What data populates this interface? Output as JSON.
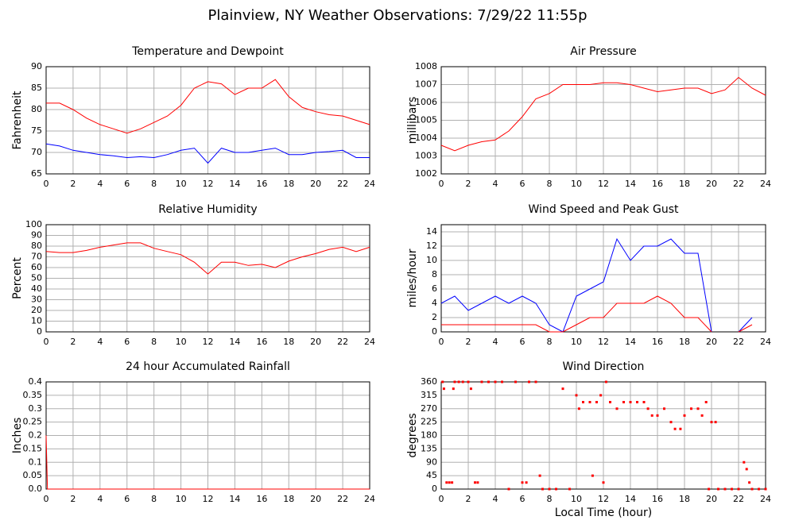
{
  "title": "Plainview, NY Weather Observations: 7/29/22 11:55p",
  "chart_data": [
    {
      "type": "line",
      "title": "Temperature and Dewpoint",
      "y_label": "Fahrenheit",
      "x": [
        0,
        1,
        2,
        3,
        4,
        5,
        6,
        7,
        8,
        9,
        10,
        11,
        12,
        13,
        14,
        15,
        16,
        17,
        18,
        19,
        20,
        21,
        22,
        23,
        24
      ],
      "xlim": [
        0,
        24
      ],
      "xticks": [
        0,
        2,
        4,
        6,
        8,
        10,
        12,
        14,
        16,
        18,
        20,
        22,
        24
      ],
      "ylim": [
        65,
        90
      ],
      "yticks": [
        65,
        70,
        75,
        80,
        85,
        90
      ],
      "grid": true,
      "series": [
        {
          "color": "#ff0000",
          "values": [
            81.5,
            81.5,
            80,
            78,
            76.5,
            75.5,
            74.5,
            75.5,
            77,
            78.5,
            81,
            85,
            86.5,
            86,
            83.5,
            85,
            85,
            87,
            83,
            80.5,
            79.5,
            78.8,
            78.5,
            77.5,
            76.5
          ]
        },
        {
          "color": "#0000ff",
          "values": [
            72,
            71.5,
            70.5,
            70,
            69.5,
            69.2,
            68.8,
            69,
            68.8,
            69.5,
            70.5,
            71,
            67.5,
            71,
            70,
            70,
            70.5,
            71,
            69.5,
            69.5,
            70,
            70.2,
            70.5,
            68.8,
            68.8
          ]
        }
      ]
    },
    {
      "type": "line",
      "title": "Air Pressure",
      "y_label": "millibars",
      "x": [
        0,
        1,
        2,
        3,
        4,
        5,
        6,
        7,
        8,
        9,
        10,
        11,
        12,
        13,
        14,
        15,
        16,
        17,
        18,
        19,
        20,
        21,
        22,
        23,
        24
      ],
      "xlim": [
        0,
        24
      ],
      "xticks": [
        0,
        2,
        4,
        6,
        8,
        10,
        12,
        14,
        16,
        18,
        20,
        22,
        24
      ],
      "ylim": [
        1002,
        1008
      ],
      "yticks": [
        1002,
        1003,
        1004,
        1005,
        1006,
        1007,
        1008
      ],
      "grid": true,
      "series": [
        {
          "color": "#ff0000",
          "values": [
            1003.6,
            1003.3,
            1003.6,
            1003.8,
            1003.9,
            1004.4,
            1005.2,
            1006.2,
            1006.5,
            1007,
            1007,
            1007,
            1007.1,
            1007.1,
            1007,
            1006.8,
            1006.6,
            1006.7,
            1006.8,
            1006.8,
            1006.5,
            1006.7,
            1007.4,
            1006.8,
            1006.4
          ]
        }
      ]
    },
    {
      "type": "line",
      "title": "Relative Humidity",
      "y_label": "Percent",
      "x": [
        0,
        1,
        2,
        3,
        4,
        5,
        6,
        7,
        8,
        9,
        10,
        11,
        12,
        13,
        14,
        15,
        16,
        17,
        18,
        19,
        20,
        21,
        22,
        23,
        24
      ],
      "xlim": [
        0,
        24
      ],
      "xticks": [
        0,
        2,
        4,
        6,
        8,
        10,
        12,
        14,
        16,
        18,
        20,
        22,
        24
      ],
      "ylim": [
        0,
        100
      ],
      "yticks": [
        0,
        10,
        20,
        30,
        40,
        50,
        60,
        70,
        80,
        90,
        100
      ],
      "grid": true,
      "series": [
        {
          "color": "#ff0000",
          "values": [
            75,
            74,
            74,
            76,
            79,
            81,
            83,
            83,
            78,
            75,
            72,
            65,
            54,
            65,
            65,
            62,
            63,
            60,
            66,
            70,
            73,
            77,
            79,
            75,
            79
          ]
        }
      ]
    },
    {
      "type": "line",
      "title": "Wind Speed and Peak Gust",
      "y_label": "miles/hour",
      "x": [
        0,
        1,
        2,
        3,
        4,
        5,
        6,
        7,
        8,
        9,
        10,
        11,
        12,
        13,
        14,
        15,
        16,
        17,
        18,
        19,
        20,
        21,
        22,
        23,
        24
      ],
      "xlim": [
        0,
        24
      ],
      "xticks": [
        0,
        2,
        4,
        6,
        8,
        10,
        12,
        14,
        16,
        18,
        20,
        22,
        24
      ],
      "ylim": [
        0,
        15
      ],
      "yticks": [
        0,
        2,
        4,
        6,
        8,
        10,
        12,
        14
      ],
      "grid": true,
      "series": [
        {
          "color": "#0000ff",
          "values": [
            4,
            5,
            3,
            4,
            5,
            4,
            5,
            4,
            1,
            0,
            5,
            6,
            7,
            13,
            10,
            12,
            12,
            13,
            11,
            11,
            0,
            null,
            0,
            2,
            null
          ]
        },
        {
          "color": "#ff0000",
          "values": [
            1,
            1,
            1,
            1,
            1,
            1,
            1,
            1,
            0,
            0,
            1,
            2,
            2,
            4,
            4,
            4,
            5,
            4,
            2,
            2,
            0,
            null,
            0,
            1,
            null
          ]
        }
      ]
    },
    {
      "type": "line",
      "title": "24 hour Accumulated Rainfall",
      "y_label": "Inches",
      "x": [
        0,
        0.1,
        24
      ],
      "xlim": [
        0,
        24
      ],
      "xticks": [
        0,
        2,
        4,
        6,
        8,
        10,
        12,
        14,
        16,
        18,
        20,
        22,
        24
      ],
      "ylim": [
        0,
        0.4
      ],
      "yticks": [
        {
          "value": 0,
          "label": "0.0"
        },
        0.05,
        0.1,
        0.15,
        0.2,
        0.25,
        0.3,
        0.35,
        0.4
      ],
      "grid": true,
      "series": [
        {
          "color": "#ff0000",
          "values": [
            0.2,
            0,
            0
          ]
        }
      ]
    },
    {
      "type": "scatter",
      "title": "Wind Direction",
      "y_label": "degrees",
      "x_label": "Local Time (hour)",
      "x": [
        0.1,
        0.2,
        0.4,
        0.6,
        0.8,
        0.9,
        1,
        1.3,
        1.6,
        2,
        2.2,
        2.5,
        2.7,
        3,
        3.5,
        4,
        4.5,
        5,
        5.5,
        6,
        6.3,
        6.5,
        7,
        7.3,
        7.5,
        8,
        8.5,
        9,
        9.5,
        10,
        10.2,
        10.5,
        11,
        11.2,
        11.5,
        11.8,
        12,
        12.2,
        12.5,
        13,
        13.5,
        14,
        14.5,
        15,
        15.3,
        15.6,
        16,
        16.5,
        17,
        17.3,
        17.7,
        18,
        18.5,
        19,
        19.3,
        19.6,
        19.8,
        20,
        20.3,
        20.5,
        21,
        21.5,
        22,
        22.4,
        22.6,
        22.8,
        23,
        23.5,
        24
      ],
      "xlim": [
        0,
        24
      ],
      "xticks": [
        0,
        2,
        4,
        6,
        8,
        10,
        12,
        14,
        16,
        18,
        20,
        22,
        24
      ],
      "ylim": [
        0,
        360
      ],
      "yticks": [
        0,
        45,
        90,
        135,
        180,
        225,
        270,
        315,
        360
      ],
      "grid": true,
      "series": [
        {
          "color": "#ff0000",
          "values": [
            360,
            337,
            22,
            22,
            22,
            337,
            360,
            360,
            360,
            360,
            337,
            22,
            22,
            360,
            360,
            360,
            360,
            0,
            360,
            22,
            22,
            360,
            360,
            45,
            0,
            0,
            0,
            337,
            0,
            315,
            270,
            292,
            292,
            45,
            292,
            315,
            22,
            360,
            292,
            270,
            292,
            292,
            292,
            292,
            270,
            247,
            247,
            270,
            225,
            202,
            202,
            247,
            270,
            270,
            247,
            292,
            0,
            225,
            225,
            0,
            0,
            0,
            0,
            90,
            67,
            22,
            0,
            0,
            0
          ]
        }
      ]
    }
  ]
}
